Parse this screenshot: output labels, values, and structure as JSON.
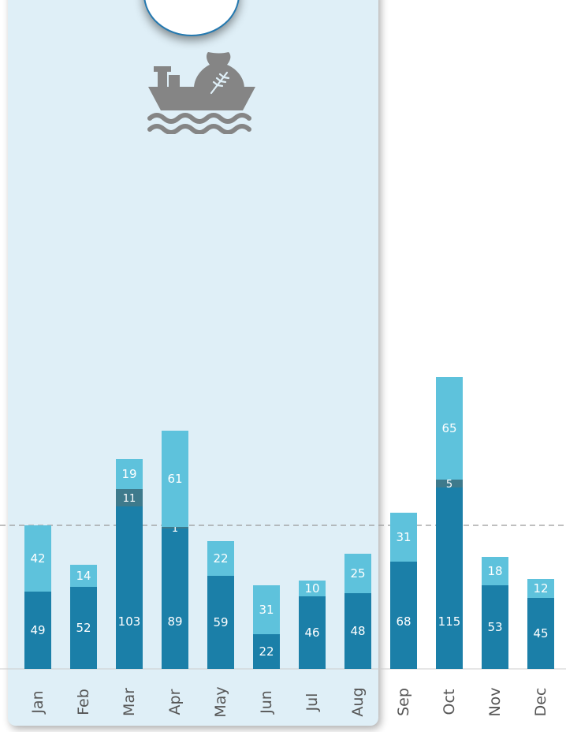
{
  "colors": {
    "base": "#1b7fa8",
    "middle": "#3e7a8c",
    "top": "#5ec2dc",
    "label": "#ffffff",
    "tick": "#555555",
    "reference_line": "#999999",
    "panel": "#dfeff7",
    "icon": "#858585"
  },
  "icons": {
    "badge": "ship-with-grain-sack-icon"
  },
  "chart_data": {
    "type": "bar",
    "stacked": true,
    "categories": [
      "Jan",
      "Feb",
      "Mar",
      "Apr",
      "May",
      "Jun",
      "Jul",
      "Aug",
      "Sep",
      "Oct",
      "Nov",
      "Dec"
    ],
    "series": [
      {
        "values": [
          49,
          52,
          103,
          89,
          59,
          22,
          46,
          48,
          68,
          115,
          53,
          45
        ]
      },
      {
        "values": [
          0,
          0,
          11,
          1,
          0,
          0,
          0,
          0,
          0,
          5,
          0,
          0
        ]
      },
      {
        "values": [
          42,
          14,
          19,
          61,
          22,
          31,
          10,
          25,
          31,
          65,
          18,
          12
        ]
      }
    ],
    "reference_line": {
      "y": 91,
      "style": "dashed"
    },
    "highlighted_categories": [
      "Jan",
      "Feb",
      "Mar",
      "Apr",
      "May",
      "Jun",
      "Jul",
      "Aug"
    ],
    "ylim": [
      0,
      200
    ],
    "title": "",
    "xlabel": "",
    "ylabel": "",
    "grid": false,
    "legend": "none",
    "tick_label_orientation": "vertical"
  }
}
